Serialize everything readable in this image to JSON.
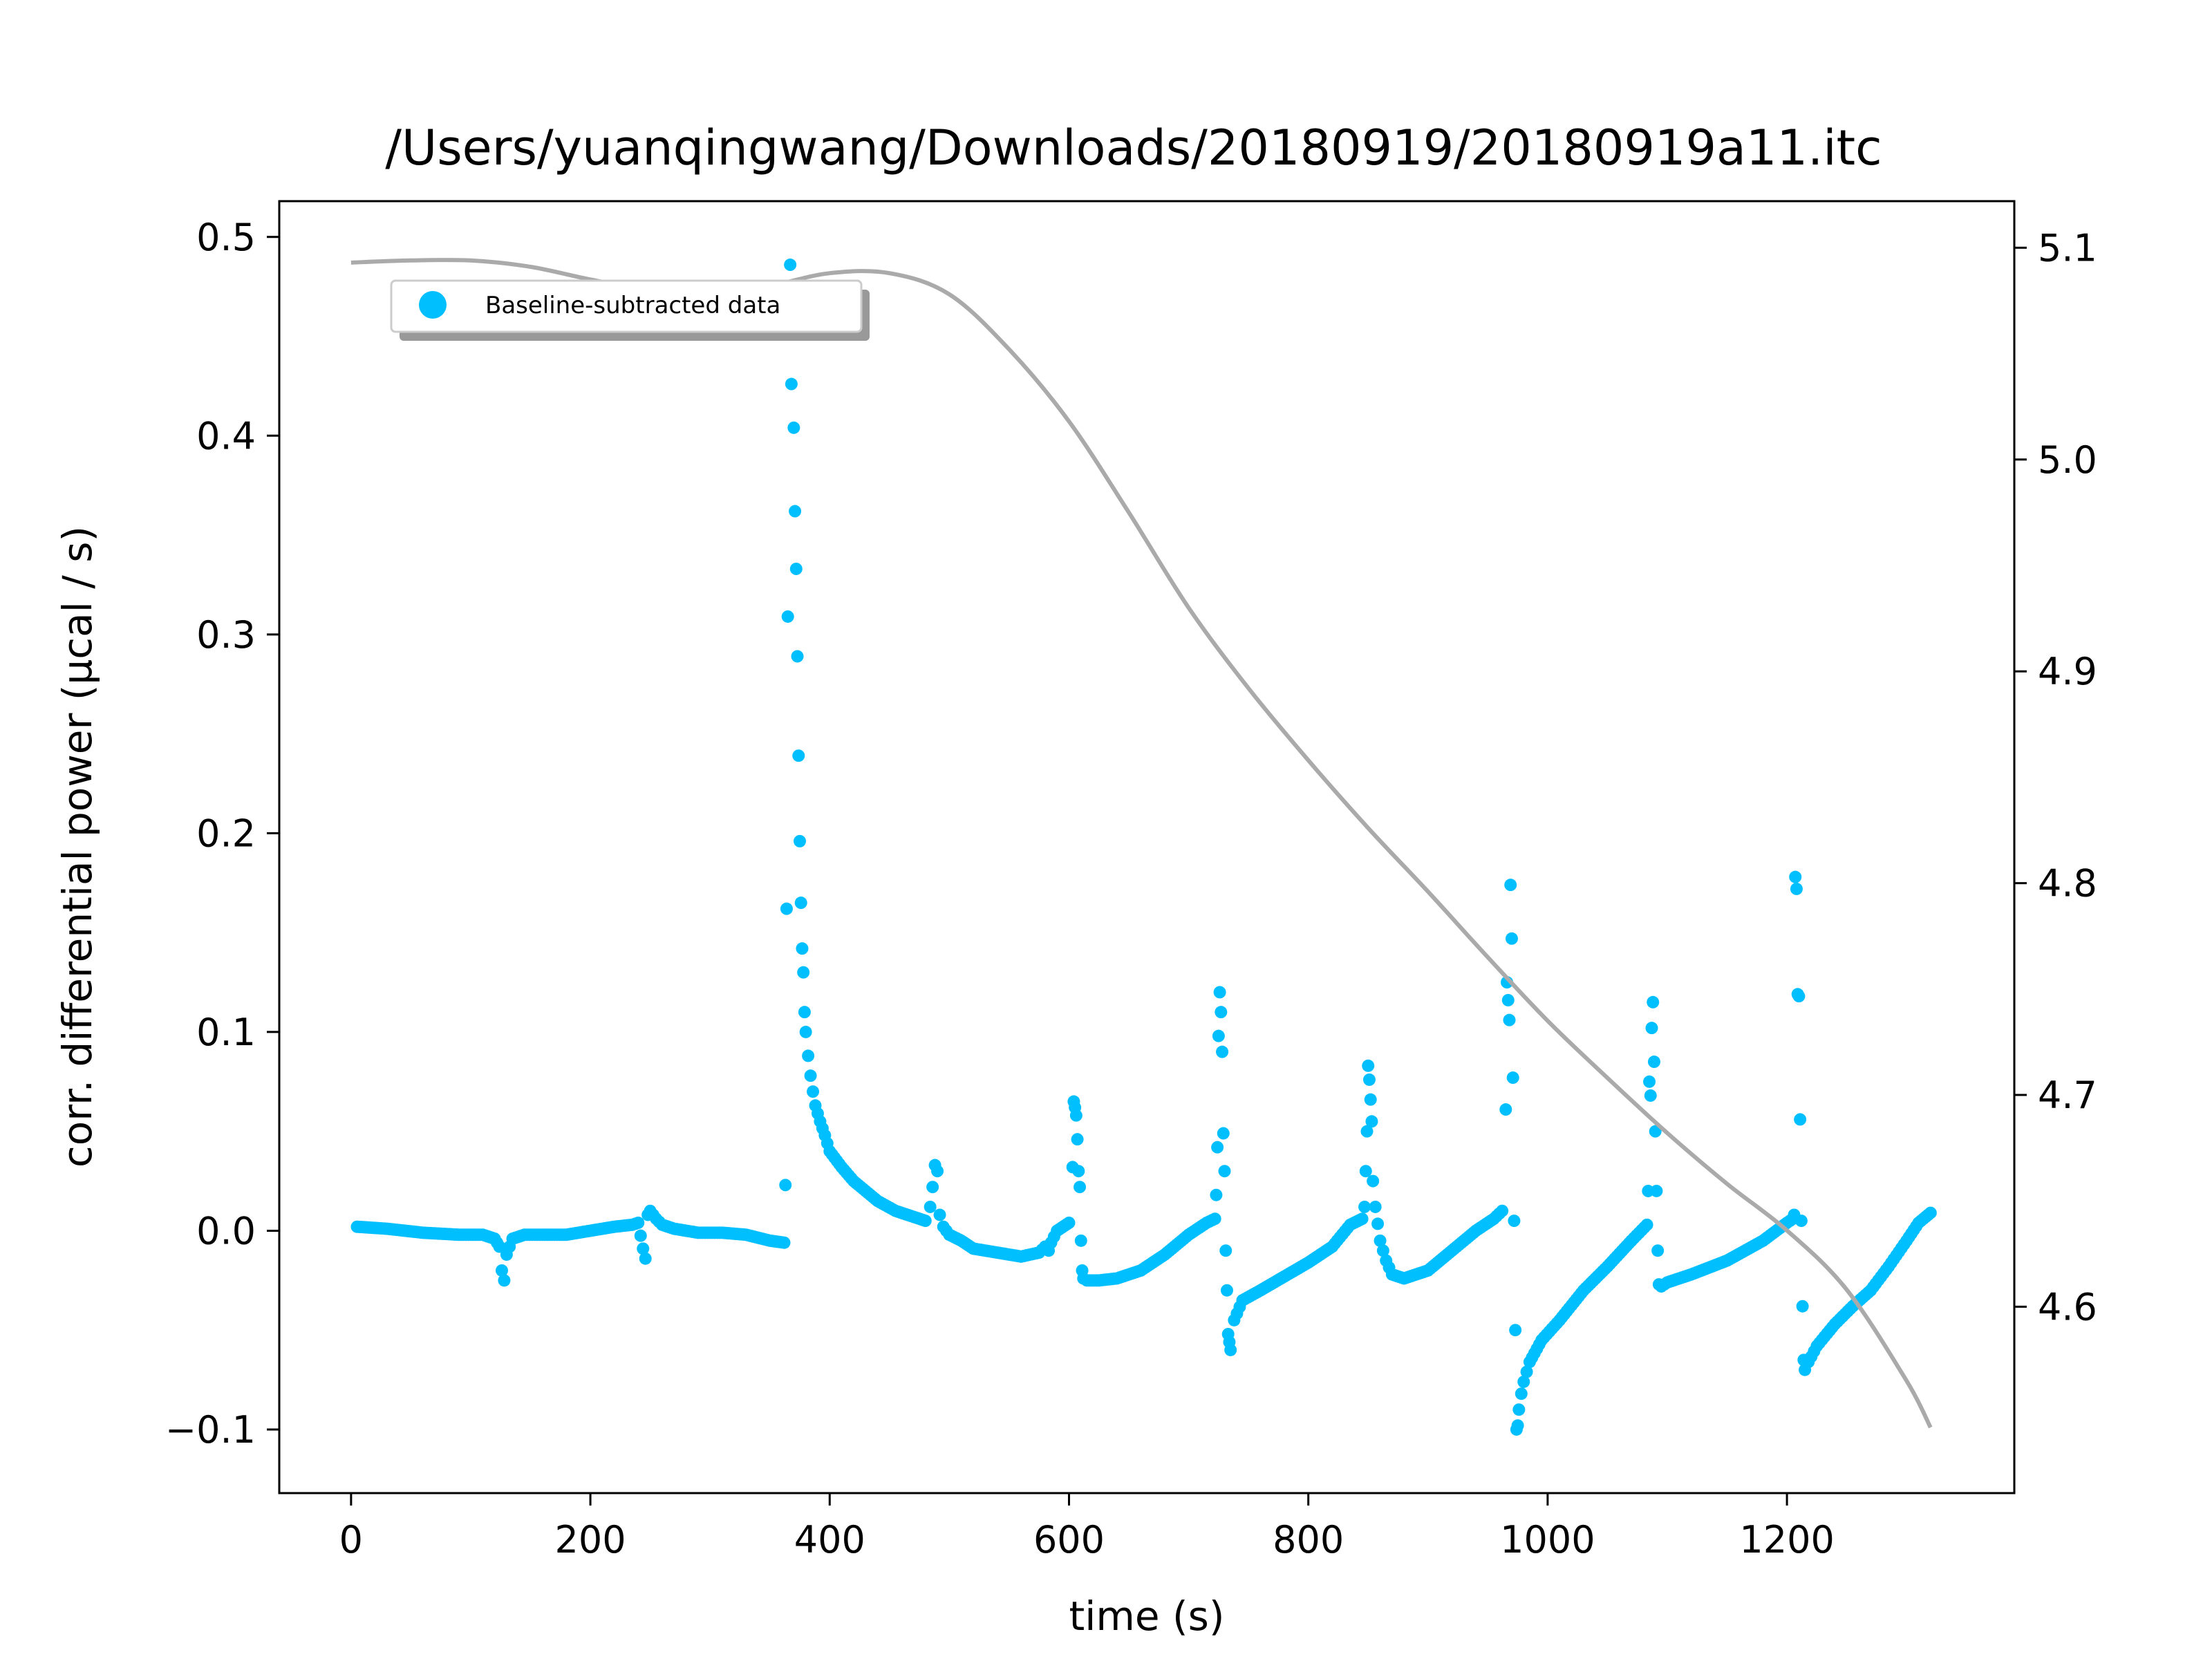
{
  "chart_data": {
    "type": "scatter",
    "title": "/Users/yuanqingwang/Downloads/20180919/20180919a11.itc",
    "xlabel": "time (s)",
    "ylabel": "corr. differential power (μcal / s)",
    "xlim": [
      -60,
      1390
    ],
    "ylim": [
      -0.132,
      0.518
    ],
    "y2lim": [
      4.512,
      5.122
    ],
    "xticks": [
      "0",
      "200",
      "400",
      "600",
      "800",
      "1000",
      "1200"
    ],
    "xtick_values": [
      0,
      200,
      400,
      600,
      800,
      1000,
      1200
    ],
    "yticks": [
      "−0.1",
      "0.0",
      "0.1",
      "0.2",
      "0.3",
      "0.4",
      "0.5"
    ],
    "ytick_values": [
      -0.1,
      0.0,
      0.1,
      0.2,
      0.3,
      0.4,
      0.5
    ],
    "y2ticks": [
      "4.6",
      "4.7",
      "4.8",
      "4.9",
      "5.0",
      "5.1"
    ],
    "y2tick_values": [
      4.6,
      4.7,
      4.8,
      4.9,
      5.0,
      5.1
    ],
    "grid": false,
    "legend": {
      "position": "upper-left",
      "entries": [
        "Baseline-subtracted data"
      ]
    },
    "colors": {
      "points": "#00bfff",
      "fit_line": "#aaaaaa"
    },
    "series": [
      {
        "name": "Baseline-subtracted data",
        "kind": "scatter",
        "axis": "left",
        "segments": [
          {
            "x": [
              5,
              30,
              60,
              90,
              110,
              120,
              124,
              126,
              128,
              130,
              135,
              145,
              160,
              180,
              200,
              220,
              235,
              240,
              244,
              246,
              248,
              250,
              255,
              260,
              270,
              290,
              310,
              330,
              350,
              362
            ],
            "y": [
              0.002,
              0.001,
              -0.001,
              -0.002,
              -0.002,
              -0.004,
              -0.008,
              -0.02,
              -0.025,
              -0.012,
              -0.004,
              -0.002,
              -0.002,
              -0.002,
              0.0,
              0.002,
              0.003,
              0.004,
              -0.009,
              -0.014,
              0.008,
              0.01,
              0.006,
              0.003,
              0.001,
              -0.001,
              -0.001,
              -0.002,
              -0.005,
              -0.006
            ]
          },
          {
            "x": [
              363,
              364,
              365,
              367,
              368,
              370,
              371,
              372,
              373,
              374,
              375,
              376,
              377,
              378,
              379,
              380,
              382,
              384,
              386,
              388,
              392,
              396,
              400,
              410,
              420,
              430,
              440,
              455,
              470,
              480
            ],
            "y": [
              0.023,
              0.162,
              0.309,
              0.486,
              0.426,
              0.404,
              0.362,
              0.333,
              0.289,
              0.239,
              0.196,
              0.165,
              0.142,
              0.13,
              0.11,
              0.1,
              0.088,
              0.078,
              0.07,
              0.063,
              0.055,
              0.048,
              0.04,
              0.032,
              0.025,
              0.02,
              0.015,
              0.01,
              0.007,
              0.005
            ]
          },
          {
            "x": [
              484,
              486,
              488,
              490,
              492,
              495,
              500,
              510,
              520,
              540,
              560,
              575,
              580,
              583,
              585,
              590,
              600
            ],
            "y": [
              0.012,
              0.022,
              0.033,
              0.03,
              0.008,
              0.002,
              -0.002,
              -0.005,
              -0.009,
              -0.011,
              -0.013,
              -0.011,
              -0.008,
              -0.01,
              -0.006,
              0.0,
              0.004
            ]
          },
          {
            "x": [
              603,
              604,
              605,
              606,
              607,
              608,
              609,
              610,
              611,
              612,
              615,
              625,
              640,
              660,
              680,
              700,
              715,
              722
            ],
            "y": [
              0.032,
              0.065,
              0.062,
              0.058,
              0.046,
              0.03,
              0.022,
              -0.005,
              -0.02,
              -0.024,
              -0.025,
              -0.025,
              -0.024,
              -0.02,
              -0.012,
              -0.002,
              0.004,
              0.006
            ]
          },
          {
            "x": [
              723,
              724,
              725,
              726,
              727,
              728,
              729,
              730,
              731,
              732,
              733,
              734,
              735,
              738,
              745,
              760,
              780,
              800,
              820,
              835,
              845
            ],
            "y": [
              0.018,
              0.042,
              0.098,
              0.12,
              0.11,
              0.09,
              0.049,
              0.03,
              -0.01,
              -0.03,
              -0.052,
              -0.056,
              -0.06,
              -0.045,
              -0.035,
              -0.03,
              -0.023,
              -0.016,
              -0.008,
              0.003,
              0.006
            ]
          },
          {
            "x": [
              847,
              848,
              849,
              850,
              851,
              852,
              853,
              854,
              856,
              860,
              865,
              870,
              880,
              900,
              920,
              940,
              955,
              962
            ],
            "y": [
              0.012,
              0.03,
              0.05,
              0.083,
              0.076,
              0.066,
              0.055,
              0.025,
              0.012,
              -0.005,
              -0.015,
              -0.022,
              -0.024,
              -0.02,
              -0.01,
              0.0,
              0.006,
              0.01
            ]
          },
          {
            "x": [
              965,
              966,
              967,
              968,
              969,
              970,
              971,
              972,
              973,
              974,
              975,
              976,
              978,
              980,
              985,
              995,
              1010,
              1030,
              1050,
              1070,
              1083
            ],
            "y": [
              0.061,
              0.125,
              0.116,
              0.106,
              0.174,
              0.147,
              0.077,
              0.005,
              -0.05,
              -0.1,
              -0.098,
              -0.09,
              -0.082,
              -0.076,
              -0.066,
              -0.055,
              -0.045,
              -0.03,
              -0.018,
              -0.005,
              0.003
            ]
          },
          {
            "x": [
              1084,
              1085,
              1086,
              1087,
              1088,
              1089,
              1090,
              1091,
              1092,
              1093,
              1095,
              1100,
              1120,
              1150,
              1180,
              1200,
              1205
            ],
            "y": [
              0.02,
              0.075,
              0.068,
              0.102,
              0.115,
              0.085,
              0.05,
              0.02,
              -0.01,
              -0.027,
              -0.028,
              -0.026,
              -0.022,
              -0.015,
              -0.005,
              0.004,
              0.006
            ]
          },
          {
            "x": [
              1206,
              1207,
              1208,
              1209,
              1210,
              1211,
              1212,
              1213,
              1214,
              1215,
              1218,
              1225,
              1240,
              1255,
              1270,
              1285,
              1300,
              1310,
              1320
            ],
            "y": [
              0.008,
              0.178,
              0.172,
              0.119,
              0.118,
              0.056,
              0.005,
              -0.038,
              -0.065,
              -0.07,
              -0.066,
              -0.058,
              -0.047,
              -0.038,
              -0.03,
              -0.018,
              -0.005,
              0.004,
              0.009
            ]
          }
        ]
      },
      {
        "kind": "line",
        "axis": "right",
        "x": [
          0,
          50,
          100,
          150,
          200,
          250,
          300,
          350,
          400,
          450,
          500,
          550,
          600,
          650,
          700,
          750,
          800,
          850,
          900,
          950,
          1000,
          1050,
          1100,
          1150,
          1200,
          1250,
          1300,
          1320
        ],
        "y": [
          5.093,
          5.094,
          5.094,
          5.091,
          5.085,
          5.08,
          5.078,
          5.082,
          5.088,
          5.088,
          5.078,
          5.052,
          5.018,
          4.975,
          4.93,
          4.892,
          4.858,
          4.826,
          4.796,
          4.765,
          4.735,
          4.708,
          4.682,
          4.658,
          4.636,
          4.608,
          4.565,
          4.543
        ]
      }
    ]
  }
}
